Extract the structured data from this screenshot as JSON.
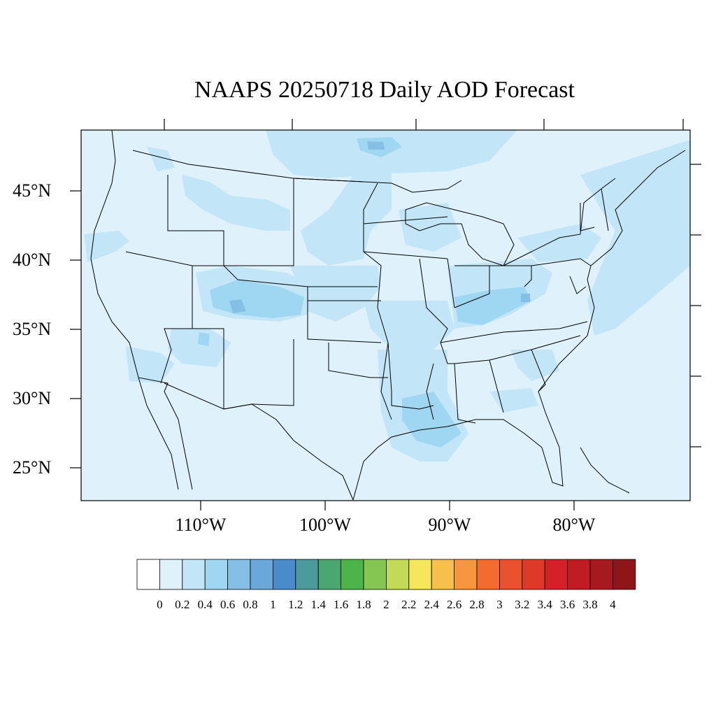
{
  "title": "NAAPS 20250718 Daily AOD Forecast",
  "map": {
    "variable": "Daily AOD",
    "region": "Continental United States",
    "background_color": "#dff1fb",
    "lat_labels": [
      "45°N",
      "40°N",
      "35°N",
      "30°N",
      "25°N"
    ],
    "lon_labels": [
      "110°W",
      "100°W",
      "90°W",
      "80°W"
    ],
    "lat_values": [
      45,
      40,
      35,
      30,
      25
    ],
    "lon_values": [
      -110,
      -100,
      -90,
      -80
    ]
  },
  "colorbar": {
    "levels": [
      "0",
      "0.2",
      "0.4",
      "0.6",
      "0.8",
      "1",
      "1.2",
      "1.4",
      "1.6",
      "1.8",
      "2",
      "2.2",
      "2.4",
      "2.6",
      "2.8",
      "3",
      "3.2",
      "3.4",
      "3.6",
      "3.8",
      "4"
    ],
    "colors": [
      "#ffffff",
      "#dff1fb",
      "#c2e6f7",
      "#9fd6f2",
      "#85bfe6",
      "#6aa8dc",
      "#4a8ccb",
      "#4b9a9c",
      "#4aa771",
      "#4cb449",
      "#85c652",
      "#c3d958",
      "#f6e65c",
      "#f7bf4d",
      "#f7963e",
      "#f46b2f",
      "#e8522c",
      "#de3a29",
      "#d42027",
      "#bf1c24",
      "#a61a1f",
      "#8f1519"
    ]
  }
}
